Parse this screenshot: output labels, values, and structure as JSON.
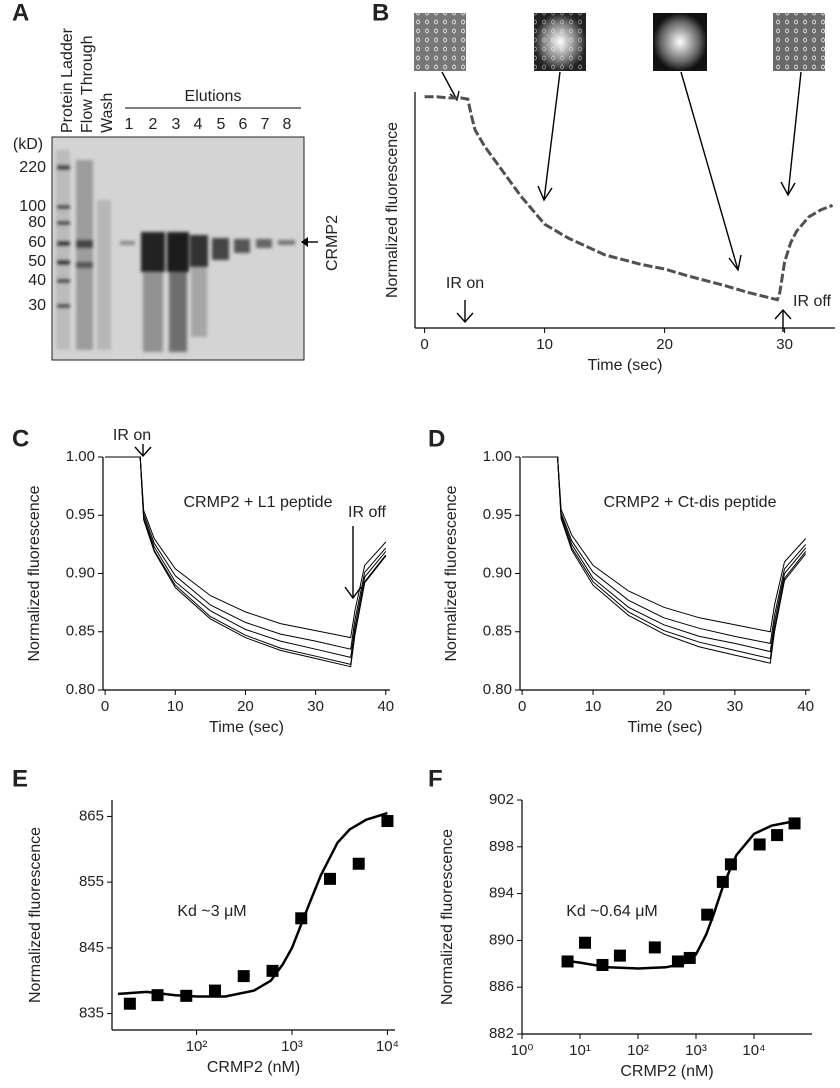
{
  "gel": {
    "panel_label": "A",
    "lanes": [
      "Protein Ladder",
      "Flow Through",
      "Wash"
    ],
    "elutions_label": "Elutions",
    "elution_numbers": [
      1,
      2,
      3,
      4,
      5,
      6,
      7,
      8
    ],
    "unit_label": "(kD)",
    "markers": [
      220,
      100,
      80,
      60,
      50,
      40,
      30
    ],
    "band_label": "CRMP2"
  },
  "chart_data": [
    {
      "type": "line",
      "panel_label": "B",
      "xlabel": "Time (sec)",
      "ylabel": "Normalized fluorescence",
      "line_style": "dashed",
      "color": "#505050",
      "x": [
        0,
        1,
        2,
        3,
        3.6,
        3.9,
        4.2,
        5,
        6,
        8,
        10,
        12,
        15,
        18,
        20,
        22,
        25,
        27,
        29.4,
        29.6,
        30,
        30.5,
        31,
        32,
        33,
        34
      ],
      "values": [
        0.98,
        0.98,
        0.975,
        0.975,
        0.97,
        0.9,
        0.84,
        0.77,
        0.7,
        0.56,
        0.44,
        0.38,
        0.31,
        0.27,
        0.25,
        0.22,
        0.18,
        0.15,
        0.12,
        0.15,
        0.28,
        0.36,
        0.41,
        0.47,
        0.5,
        0.52
      ],
      "xlim": [
        -0.8,
        34.2
      ],
      "ylim": [
        0,
        1
      ],
      "xticks": [
        0,
        10,
        20,
        30
      ],
      "annotations": [
        "IR on",
        "IR off"
      ]
    },
    {
      "type": "line",
      "panel_label": "C",
      "xlabel": "Time (sec)",
      "ylabel": "Normalized fluorescence",
      "x": [
        0,
        5,
        5.5,
        7,
        10,
        15,
        20,
        25,
        30,
        35,
        35.6,
        37,
        40
      ],
      "series": [
        {
          "color": "#000000",
          "values": [
            1,
            1,
            0.954,
            0.93,
            0.904,
            0.881,
            0.867,
            0.857,
            0.851,
            0.845,
            0.868,
            0.907,
            0.927
          ]
        },
        {
          "color": "#000000",
          "values": [
            1,
            1,
            0.951,
            0.926,
            0.898,
            0.873,
            0.858,
            0.848,
            0.842,
            0.835,
            0.86,
            0.901,
            0.922
          ]
        },
        {
          "color": "#000000",
          "values": [
            1,
            1,
            0.948,
            0.923,
            0.893,
            0.868,
            0.852,
            0.842,
            0.835,
            0.828,
            0.854,
            0.897,
            0.919
          ]
        },
        {
          "color": "#000000",
          "values": [
            1,
            1,
            0.947,
            0.92,
            0.89,
            0.863,
            0.847,
            0.836,
            0.829,
            0.822,
            0.849,
            0.893,
            0.916
          ]
        },
        {
          "color": "#000000",
          "values": [
            1,
            1,
            0.946,
            0.919,
            0.888,
            0.861,
            0.845,
            0.834,
            0.827,
            0.82,
            0.847,
            0.892,
            0.915
          ]
        }
      ],
      "xlim": [
        -0.3,
        40.6
      ],
      "ylim": [
        0.8,
        1.0
      ],
      "xticks": [
        0,
        10,
        20,
        30,
        40
      ],
      "yticks": [
        {
          "value": 1.0,
          "label": "1.00"
        },
        0.95,
        {
          "value": 0.9,
          "label": "0.90"
        },
        0.85,
        {
          "value": 0.8,
          "label": "0.80"
        }
      ],
      "annotations": [
        "IR on",
        "CRMP2 + L1 peptide",
        "IR off"
      ]
    },
    {
      "type": "line",
      "panel_label": "D",
      "xlabel": "Time (sec)",
      "ylabel": "Normalized fluorescence",
      "x": [
        0,
        5,
        5.5,
        7,
        10,
        15,
        20,
        25,
        30,
        35,
        35.6,
        37,
        40
      ],
      "series": [
        {
          "color": "#000000",
          "values": [
            1,
            1,
            0.955,
            0.933,
            0.907,
            0.885,
            0.871,
            0.862,
            0.856,
            0.85,
            0.873,
            0.91,
            0.93
          ]
        },
        {
          "color": "#000000",
          "values": [
            1,
            1,
            0.952,
            0.928,
            0.901,
            0.877,
            0.862,
            0.853,
            0.846,
            0.84,
            0.864,
            0.904,
            0.925
          ]
        },
        {
          "color": "#000000",
          "values": [
            1,
            1,
            0.95,
            0.925,
            0.896,
            0.871,
            0.856,
            0.846,
            0.84,
            0.833,
            0.858,
            0.9,
            0.922
          ]
        },
        {
          "color": "#000000",
          "values": [
            1,
            1,
            0.948,
            0.922,
            0.893,
            0.867,
            0.851,
            0.841,
            0.834,
            0.827,
            0.853,
            0.896,
            0.919
          ]
        },
        {
          "color": "#000000",
          "values": [
            1,
            1,
            0.947,
            0.92,
            0.89,
            0.864,
            0.848,
            0.837,
            0.83,
            0.823,
            0.85,
            0.894,
            0.917
          ]
        }
      ],
      "xlim": [
        -0.3,
        40.6
      ],
      "ylim": [
        0.8,
        1.0
      ],
      "xticks": [
        0,
        10,
        20,
        30,
        40
      ],
      "yticks": [
        {
          "value": 1.0,
          "label": "1.00"
        },
        0.95,
        {
          "value": 0.9,
          "label": "0.90"
        },
        0.85,
        {
          "value": 0.8,
          "label": "0.80"
        }
      ],
      "annotations": [
        "CRMP2 + Ct-dis peptide"
      ]
    },
    {
      "type": "scatter",
      "panel_label": "E",
      "xlabel": "CRMP2 (nM)",
      "ylabel": "Normalized fluorescence",
      "xscale": "log",
      "color": "#000000",
      "x": [
        20,
        39,
        78,
        156,
        312,
        625,
        1250,
        2500,
        5000,
        10000
      ],
      "values": [
        836.5,
        837.8,
        837.7,
        838.5,
        840.7,
        841.5,
        849.5,
        855.5,
        857.8,
        864.3
      ],
      "fit": {
        "x": [
          15,
          30,
          60,
          100,
          200,
          400,
          600,
          800,
          1000,
          1500,
          2000,
          3000,
          4000,
          6000,
          10000
        ],
        "values": [
          838,
          838.3,
          837.8,
          837.6,
          837.6,
          838.5,
          840,
          842.5,
          845,
          851.5,
          856,
          861,
          863,
          864.5,
          865.5
        ]
      },
      "xlim": [
        13,
        12000
      ],
      "ylim": [
        832.5,
        867.5
      ],
      "xticks": [
        {
          "value": 100,
          "label": "10²"
        },
        {
          "value": 1000,
          "label": "10³"
        },
        {
          "value": 10000,
          "label": "10⁴"
        }
      ],
      "yticks": [
        835,
        845,
        855,
        865
      ],
      "annotations": [
        "Kd ~3 μM"
      ]
    },
    {
      "type": "scatter",
      "panel_label": "F",
      "xlabel": "CRMP2 (nM)",
      "ylabel": "Normalized fluorescence",
      "xscale": "log",
      "color": "#000000",
      "x": [
        6.1,
        12.2,
        24.4,
        48.8,
        195,
        488,
        780,
        1560,
        2900,
        4000,
        12500,
        25000,
        50000
      ],
      "values": [
        888.2,
        889.8,
        887.9,
        888.7,
        889.4,
        888.2,
        888.5,
        892.2,
        895,
        896.5,
        898.2,
        899,
        900
      ],
      "fit": {
        "x": [
          5,
          10,
          30,
          100,
          300,
          600,
          1000,
          1500,
          2000,
          3000,
          5000,
          10000,
          20000,
          50000
        ],
        "values": [
          888.3,
          888.1,
          887.7,
          887.6,
          887.7,
          888,
          888.8,
          890.5,
          892.2,
          894.8,
          897.3,
          899.1,
          899.8,
          900.2
        ]
      },
      "xlim": [
        1,
        100000
      ],
      "ylim": [
        882,
        902
      ],
      "xticks": [
        {
          "value": 1,
          "label": "10⁰"
        },
        {
          "value": 10,
          "label": "10¹"
        },
        {
          "value": 100,
          "label": "10²"
        },
        {
          "value": 1000,
          "label": "10³"
        },
        {
          "value": 10000,
          "label": "10⁴"
        }
      ],
      "yticks": [
        882,
        886,
        890,
        894,
        898,
        902
      ],
      "annotations": [
        "Kd ~0.64 μM"
      ]
    }
  ]
}
